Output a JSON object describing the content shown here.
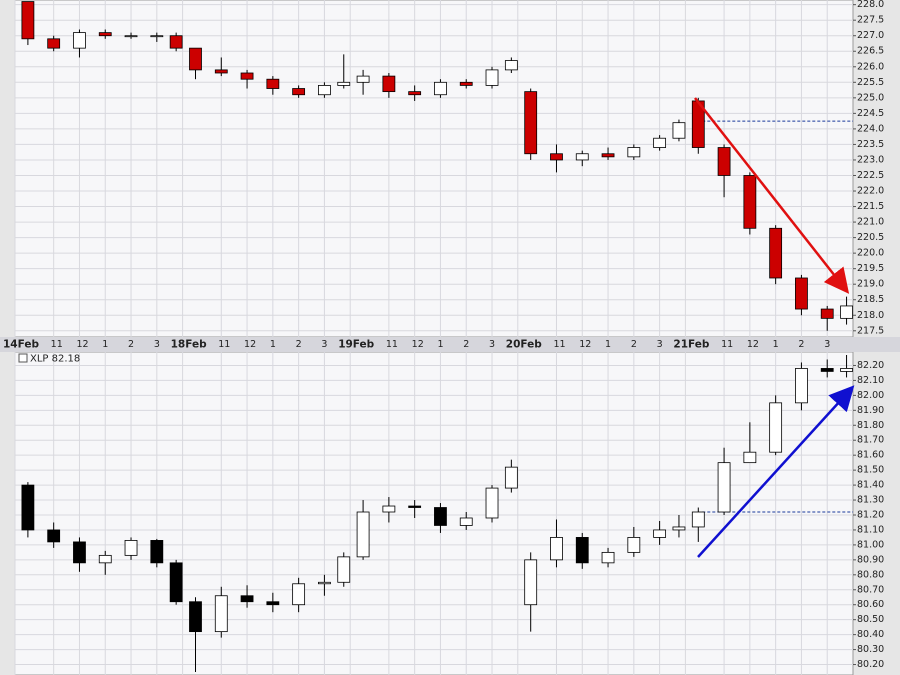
{
  "chart_data": [
    {
      "type": "candlestick",
      "xlim": [
        0,
        32.5
      ],
      "ylim": [
        217.3,
        228.15
      ],
      "up_color": "#ffffff",
      "down_color": "#cc0000",
      "grid": true,
      "reference_line": 224.25,
      "reference_color": "#1a3a9a",
      "xticks": [
        {
          "value": 0,
          "label": "14Feb"
        },
        {
          "value": 1.5,
          "label": "11"
        },
        {
          "value": 2.5,
          "label": "12"
        },
        {
          "value": 3.5,
          "label": "1"
        },
        {
          "value": 4.5,
          "label": "2"
        },
        {
          "value": 5.5,
          "label": "3"
        },
        {
          "value": 6.5,
          "label": "18Feb"
        },
        {
          "value": 8,
          "label": "11"
        },
        {
          "value": 9,
          "label": "12"
        },
        {
          "value": 10,
          "label": "1"
        },
        {
          "value": 11,
          "label": "2"
        },
        {
          "value": 12,
          "label": "3"
        },
        {
          "value": 13,
          "label": "19Feb"
        },
        {
          "value": 14.5,
          "label": "11"
        },
        {
          "value": 15.5,
          "label": "12"
        },
        {
          "value": 16.5,
          "label": "1"
        },
        {
          "value": 17.5,
          "label": "2"
        },
        {
          "value": 18.5,
          "label": "3"
        },
        {
          "value": 19.5,
          "label": "20Feb"
        },
        {
          "value": 21,
          "label": "11"
        },
        {
          "value": 22,
          "label": "12"
        },
        {
          "value": 23,
          "label": "1"
        },
        {
          "value": 24,
          "label": "2"
        },
        {
          "value": 25,
          "label": "3"
        },
        {
          "value": 26,
          "label": "21Feb"
        },
        {
          "value": 27.5,
          "label": "11"
        },
        {
          "value": 28.5,
          "label": "12"
        },
        {
          "value": 29.5,
          "label": "1"
        },
        {
          "value": 30.5,
          "label": "2"
        },
        {
          "value": 31.5,
          "label": "3"
        }
      ],
      "yticks": [
        217.5,
        {
          "value": 218,
          "label": "218.0"
        },
        218.5,
        {
          "value": 219,
          "label": "219.0"
        },
        219.5,
        {
          "value": 220,
          "label": "220.0"
        },
        220.5,
        {
          "value": 221,
          "label": "221.0"
        },
        221.5,
        {
          "value": 222,
          "label": "222.0"
        },
        222.5,
        {
          "value": 223,
          "label": "223.0"
        },
        223.5,
        {
          "value": 224,
          "label": "224.0"
        },
        224.5,
        {
          "value": 225,
          "label": "225.0"
        },
        225.5,
        {
          "value": 226,
          "label": "226.0"
        },
        226.5,
        {
          "value": 227,
          "label": "227.0"
        },
        227.5,
        {
          "value": 228,
          "label": "228.0"
        }
      ],
      "x": [
        0.5,
        1.5,
        2.5,
        3.5,
        4.5,
        5.5,
        6.25,
        7,
        8,
        9,
        10,
        11,
        12,
        12.75,
        13.5,
        14.5,
        15.5,
        16.5,
        17.5,
        18.5,
        19.25,
        20,
        21,
        22,
        23,
        24,
        25,
        25.75,
        26.5,
        27.5,
        28.5,
        29.5,
        30.5,
        31.5,
        32.25
      ],
      "open": [
        228.1,
        226.9,
        226.6,
        227.1,
        227.0,
        227.0,
        227.0,
        226.6,
        225.9,
        225.8,
        225.6,
        225.3,
        225.1,
        225.4,
        225.5,
        225.7,
        225.2,
        225.1,
        225.5,
        225.4,
        225.9,
        225.2,
        223.2,
        223.0,
        223.2,
        223.1,
        223.4,
        223.7,
        224.9,
        223.4,
        222.5,
        220.8,
        219.2,
        218.2,
        217.9
      ],
      "high": [
        228.1,
        227.0,
        227.2,
        227.2,
        227.1,
        227.1,
        227.1,
        226.6,
        226.3,
        225.9,
        225.7,
        225.4,
        225.5,
        226.4,
        225.9,
        225.8,
        225.4,
        225.6,
        225.6,
        226.0,
        226.3,
        225.3,
        223.5,
        223.3,
        223.4,
        223.5,
        223.8,
        224.3,
        225.0,
        223.5,
        222.6,
        220.9,
        219.3,
        218.3,
        218.6
      ],
      "low": [
        226.7,
        226.5,
        226.3,
        226.9,
        226.9,
        226.8,
        226.5,
        225.6,
        225.7,
        225.3,
        225.1,
        225.0,
        225.0,
        225.3,
        225.1,
        225.0,
        224.9,
        225.0,
        225.3,
        225.3,
        225.8,
        223.0,
        222.6,
        222.8,
        223.0,
        223.0,
        223.3,
        223.6,
        223.2,
        221.8,
        220.6,
        219.0,
        218.0,
        217.5,
        217.7
      ],
      "close": [
        226.9,
        226.6,
        227.1,
        227.0,
        227.0,
        227.0,
        226.6,
        225.9,
        225.8,
        225.6,
        225.3,
        225.1,
        225.4,
        225.5,
        225.7,
        225.2,
        225.1,
        225.5,
        225.4,
        225.9,
        226.2,
        223.2,
        223.0,
        223.2,
        223.1,
        223.4,
        223.7,
        224.2,
        223.4,
        222.5,
        220.8,
        219.2,
        218.2,
        217.9,
        218.3
      ]
    },
    {
      "type": "candlestick",
      "title": "XLP 82.18",
      "xlim": [
        0,
        32.5
      ],
      "ylim": [
        80.13,
        82.29
      ],
      "up_color": "#ffffff",
      "down_color": "#000000",
      "grid": true,
      "reference_line": 81.22,
      "reference_color": "#1a3a9a",
      "yticks": [
        {
          "value": 80.2,
          "label": "80.20"
        },
        {
          "value": 80.3,
          "label": "80.30"
        },
        {
          "value": 80.4,
          "label": "80.40"
        },
        {
          "value": 80.5,
          "label": "80.50"
        },
        {
          "value": 80.6,
          "label": "80.60"
        },
        {
          "value": 80.7,
          "label": "80.70"
        },
        {
          "value": 80.8,
          "label": "80.80"
        },
        {
          "value": 80.9,
          "label": "80.90"
        },
        {
          "value": 81,
          "label": "81.00"
        },
        {
          "value": 81.1,
          "label": "81.10"
        },
        {
          "value": 81.2,
          "label": "81.20"
        },
        {
          "value": 81.3,
          "label": "81.30"
        },
        {
          "value": 81.4,
          "label": "81.40"
        },
        {
          "value": 81.5,
          "label": "81.50"
        },
        {
          "value": 81.6,
          "label": "81.60"
        },
        {
          "value": 81.7,
          "label": "81.70"
        },
        {
          "value": 81.8,
          "label": "81.80"
        },
        {
          "value": 81.9,
          "label": "81.90"
        },
        {
          "value": 82,
          "label": "82.00"
        },
        {
          "value": 82.1,
          "label": "82.10"
        },
        {
          "value": 82.2,
          "label": "82.20"
        }
      ],
      "x": [
        0.5,
        1.5,
        2.5,
        3.5,
        4.5,
        5.5,
        6.25,
        7,
        8,
        9,
        10,
        11,
        12,
        12.75,
        13.5,
        14.5,
        15.5,
        16.5,
        17.5,
        18.5,
        19.25,
        20,
        21,
        22,
        23,
        24,
        25,
        25.75,
        26.5,
        27.5,
        28.5,
        29.5,
        30.5,
        31.5,
        32.25
      ],
      "open": [
        81.4,
        81.1,
        81.02,
        80.88,
        80.93,
        81.03,
        80.88,
        80.62,
        80.42,
        80.66,
        80.62,
        80.6,
        80.74,
        80.75,
        80.92,
        81.22,
        81.26,
        81.25,
        81.13,
        81.18,
        81.38,
        80.6,
        80.9,
        81.05,
        80.88,
        80.95,
        81.05,
        81.1,
        81.12,
        81.22,
        81.55,
        81.62,
        81.95,
        82.18,
        82.16
      ],
      "high": [
        81.42,
        81.15,
        81.05,
        80.96,
        81.05,
        81.04,
        80.9,
        80.65,
        80.72,
        80.73,
        80.68,
        80.78,
        80.8,
        80.95,
        81.3,
        81.32,
        81.3,
        81.28,
        81.22,
        81.4,
        81.57,
        80.95,
        81.17,
        81.08,
        80.98,
        81.12,
        81.16,
        81.2,
        81.25,
        81.65,
        81.82,
        82.0,
        82.22,
        82.24,
        82.27
      ],
      "low": [
        81.05,
        80.98,
        80.82,
        80.8,
        80.9,
        80.85,
        80.6,
        80.15,
        80.38,
        80.58,
        80.55,
        80.55,
        80.66,
        80.72,
        80.9,
        81.15,
        81.18,
        81.08,
        81.1,
        81.15,
        81.35,
        80.42,
        80.85,
        80.84,
        80.85,
        80.92,
        81.0,
        81.05,
        81.02,
        81.2,
        81.55,
        81.6,
        81.9,
        82.12,
        82.12
      ],
      "close": [
        81.1,
        81.02,
        80.88,
        80.93,
        81.03,
        80.88,
        80.62,
        80.42,
        80.66,
        80.62,
        80.6,
        80.74,
        80.75,
        80.92,
        81.22,
        81.26,
        81.25,
        81.13,
        81.18,
        81.38,
        81.52,
        80.9,
        81.05,
        80.88,
        80.95,
        81.05,
        81.1,
        81.12,
        81.22,
        81.55,
        81.62,
        81.95,
        82.18,
        82.16,
        82.18
      ]
    }
  ]
}
